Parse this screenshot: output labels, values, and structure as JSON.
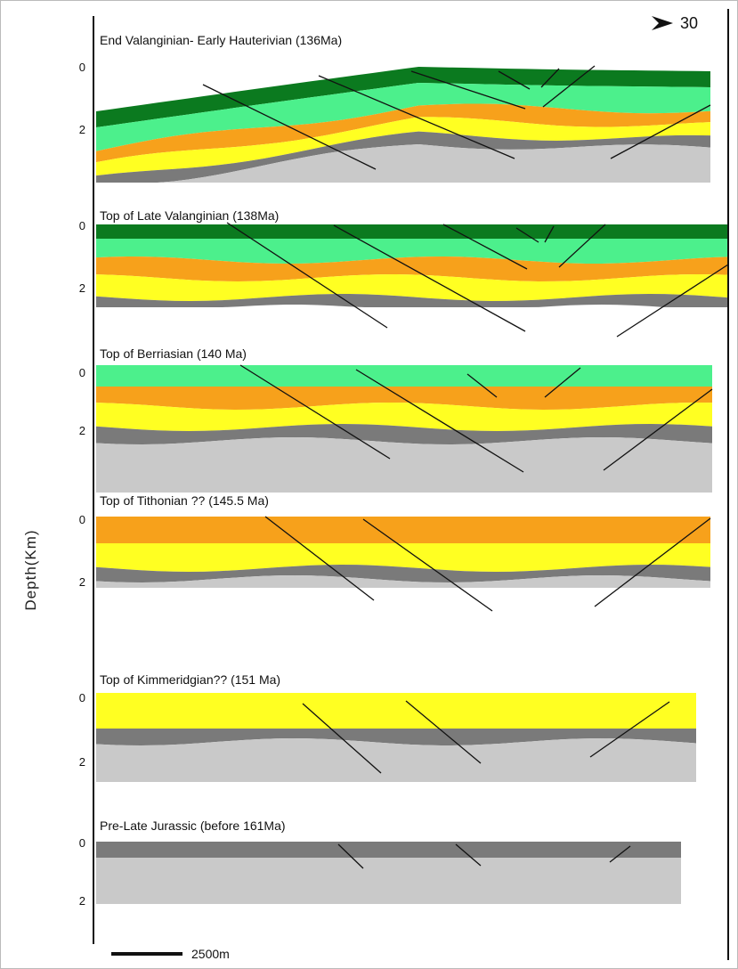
{
  "orientation": "30",
  "axis_label": "Depth(Km)",
  "scale_bar": "2500m",
  "panels": [
    {
      "title": "End Valanginian- Early Hauterivian (136Ma)",
      "depth_labels": [
        "0",
        "2"
      ]
    },
    {
      "title": "Top of  Late  Valanginian (138Ma)",
      "depth_labels": [
        "0",
        "2"
      ]
    },
    {
      "title": "Top of  Berriasian (140 Ma)",
      "depth_labels": [
        "0",
        "2"
      ]
    },
    {
      "title": "Top of Tithonian ??  (145.5 Ma)",
      "depth_labels": [
        "0",
        "2"
      ]
    },
    {
      "title": "Top of  Kimmeridgian?? (151 Ma)",
      "depth_labels": [
        "0",
        "2"
      ]
    },
    {
      "title": "Pre-Late Jurassic (before 161Ma)",
      "depth_labels": [
        "0",
        "2"
      ]
    }
  ]
}
